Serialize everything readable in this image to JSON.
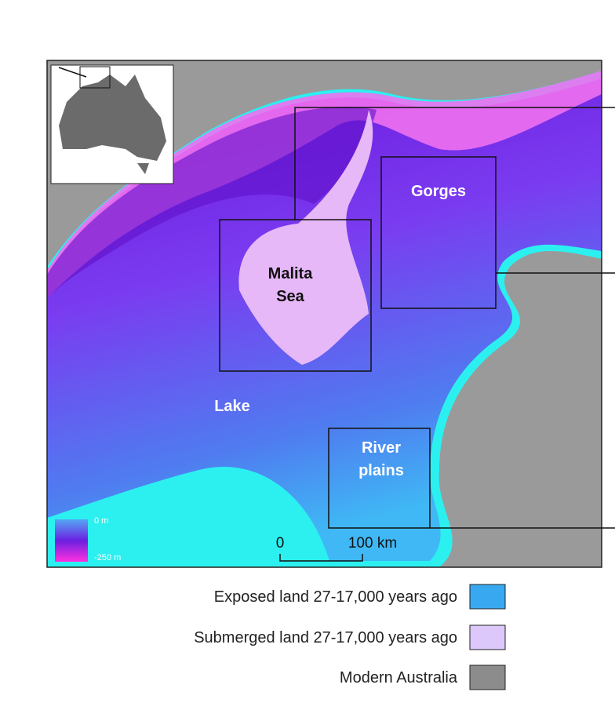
{
  "map": {
    "labels": {
      "malita": [
        "Malita",
        "Sea"
      ],
      "gorges": "Gorges",
      "lake": "Lake",
      "river": [
        "River",
        "plains"
      ]
    },
    "depth_scale": {
      "top": "0 m",
      "bottom": "-250 m"
    },
    "scale_bar": {
      "start": "0",
      "end": "100 km"
    },
    "legend": [
      "Exposed land 27-17,000 years ago",
      "Submerged land 27-17,000 years ago",
      "Modern Australia"
    ]
  }
}
